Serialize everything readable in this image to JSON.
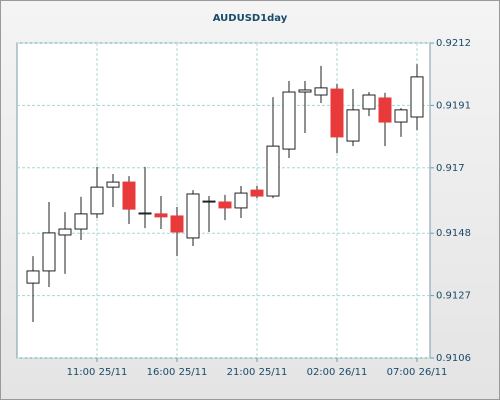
{
  "chart_data": {
    "type": "candlestick",
    "title": "AUDUSD1day",
    "categories": [
      null,
      null,
      null,
      null,
      "11:00 25/11",
      null,
      null,
      null,
      null,
      "16:00 25/11",
      null,
      null,
      null,
      null,
      "21:00 25/11",
      null,
      null,
      null,
      null,
      "02:00 26/11",
      null,
      null,
      null,
      null,
      "07:00 26/11"
    ],
    "open": [
      0.91312,
      0.91353,
      0.91474,
      0.91494,
      0.91545,
      0.91635,
      0.91652,
      0.91548,
      0.91545,
      0.91538,
      0.91464,
      0.91588,
      0.91585,
      0.91565,
      0.91625,
      0.91605,
      0.91763,
      0.91955,
      0.91945,
      0.91965,
      0.9179,
      0.91898,
      0.91935,
      0.91854,
      0.91871
    ],
    "high": [
      0.91403,
      0.91585,
      0.91551,
      0.91602,
      0.91703,
      0.91679,
      0.91672,
      0.91703,
      0.91605,
      0.91568,
      0.91625,
      0.91605,
      0.91609,
      0.91639,
      0.91639,
      0.91938,
      0.91992,
      0.91992,
      0.92043,
      0.91982,
      0.91965,
      0.91955,
      0.91952,
      0.91901,
      0.92049
    ],
    "low": [
      0.91181,
      0.91299,
      0.91343,
      0.91457,
      0.91531,
      0.91568,
      0.91511,
      0.91497,
      0.91494,
      0.91403,
      0.91437,
      0.91484,
      0.91524,
      0.91531,
      0.91598,
      0.91598,
      0.91733,
      0.91817,
      0.91918,
      0.9175,
      0.91773,
      0.91874,
      0.91773,
      0.91804,
      0.91827
    ],
    "close": [
      0.91353,
      0.91481,
      0.91494,
      0.91545,
      0.91635,
      0.91652,
      0.91561,
      0.91548,
      0.91535,
      0.91484,
      0.91612,
      0.91588,
      0.91565,
      0.91615,
      0.91605,
      0.91773,
      0.91955,
      0.91962,
      0.91969,
      0.91804,
      0.91895,
      0.91945,
      0.91854,
      0.91895,
      0.92006
    ],
    "up_color": "#ffffff",
    "down_color": "#e83a3a",
    "ylim": [
      0.9106,
      0.9212
    ],
    "yticks": [
      0.9106,
      0.9127,
      0.9148,
      0.917,
      0.9191,
      0.9212
    ],
    "grid": true
  }
}
